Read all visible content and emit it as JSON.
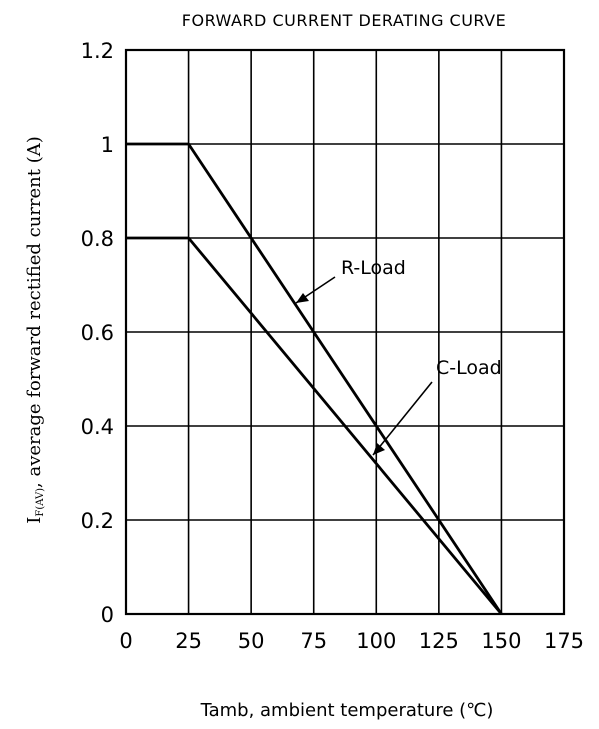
{
  "chart_data": {
    "type": "line",
    "title": "FORWARD CURRENT DERATING CURVE",
    "xlabel": "Tamb, ambient temperature (℃)",
    "ylabel_main": "I",
    "ylabel_sub": "F(AV)",
    "ylabel_rest": ", average forward rectified current (A)",
    "xlim": [
      0,
      175
    ],
    "ylim": [
      0,
      1.2
    ],
    "x_ticks": [
      0,
      25,
      50,
      75,
      100,
      125,
      150,
      175
    ],
    "x_tick_labels": [
      "0",
      "25",
      "50",
      "75",
      "100",
      "125",
      "150",
      "175"
    ],
    "y_ticks": [
      0,
      0.2,
      0.4,
      0.6,
      0.8,
      1.0,
      1.2
    ],
    "y_tick_labels": [
      "0",
      "0.2",
      "0.4",
      "0.6",
      "0.8",
      "1",
      "1.2"
    ],
    "grid": true,
    "series": [
      {
        "name": "R-Load",
        "x": [
          0,
          25,
          150
        ],
        "y": [
          1.0,
          1.0,
          0
        ]
      },
      {
        "name": "C-Load",
        "x": [
          0,
          25,
          150
        ],
        "y": [
          0.8,
          0.8,
          0
        ]
      }
    ]
  }
}
